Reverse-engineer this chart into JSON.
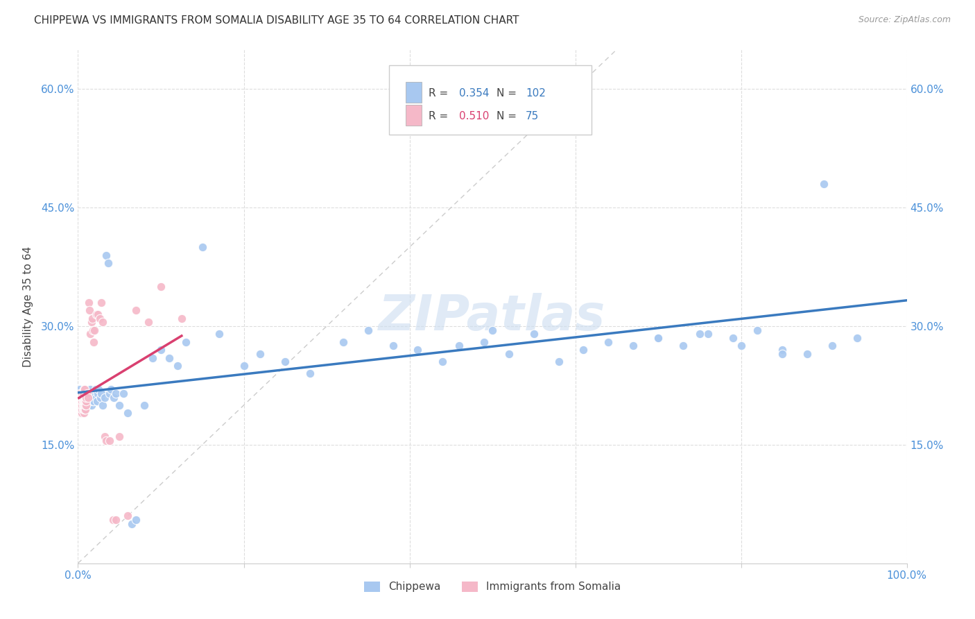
{
  "title": "CHIPPEWA VS IMMIGRANTS FROM SOMALIA DISABILITY AGE 35 TO 64 CORRELATION CHART",
  "source": "Source: ZipAtlas.com",
  "ylabel": "Disability Age 35 to 64",
  "xlim": [
    0,
    1.0
  ],
  "ylim": [
    0,
    0.65
  ],
  "ytick_vals": [
    0.15,
    0.3,
    0.45,
    0.6
  ],
  "xtick_vals": [
    0.0,
    0.2,
    0.4,
    0.6,
    0.8,
    1.0
  ],
  "chippewa_color": "#a8c8f0",
  "somalia_color": "#f5b8c8",
  "chippewa_line_color": "#3a7abf",
  "somalia_line_color": "#d94070",
  "diagonal_color": "#cccccc",
  "tick_label_color": "#4a90d9",
  "R_chippewa": 0.354,
  "N_chippewa": 102,
  "R_somalia": 0.51,
  "N_somalia": 75,
  "watermark_text": "ZIPatlas",
  "chippewa_x": [
    0.001,
    0.001,
    0.002,
    0.002,
    0.002,
    0.003,
    0.003,
    0.003,
    0.003,
    0.004,
    0.004,
    0.004,
    0.005,
    0.005,
    0.005,
    0.005,
    0.006,
    0.006,
    0.006,
    0.007,
    0.007,
    0.007,
    0.008,
    0.008,
    0.008,
    0.009,
    0.009,
    0.01,
    0.01,
    0.011,
    0.011,
    0.012,
    0.013,
    0.014,
    0.015,
    0.015,
    0.016,
    0.017,
    0.018,
    0.019,
    0.02,
    0.021,
    0.022,
    0.023,
    0.024,
    0.025,
    0.027,
    0.028,
    0.03,
    0.032,
    0.034,
    0.036,
    0.038,
    0.04,
    0.043,
    0.046,
    0.05,
    0.055,
    0.06,
    0.065,
    0.07,
    0.08,
    0.09,
    0.1,
    0.11,
    0.12,
    0.13,
    0.15,
    0.17,
    0.2,
    0.22,
    0.25,
    0.28,
    0.32,
    0.35,
    0.38,
    0.41,
    0.44,
    0.46,
    0.49,
    0.52,
    0.55,
    0.58,
    0.61,
    0.64,
    0.67,
    0.7,
    0.73,
    0.76,
    0.79,
    0.82,
    0.85,
    0.88,
    0.91,
    0.94,
    0.46,
    0.5,
    0.7,
    0.75,
    0.8,
    0.85,
    0.9
  ],
  "chippewa_y": [
    0.2,
    0.21,
    0.215,
    0.205,
    0.22,
    0.2,
    0.205,
    0.21,
    0.215,
    0.2,
    0.205,
    0.21,
    0.2,
    0.205,
    0.21,
    0.215,
    0.2,
    0.205,
    0.21,
    0.2,
    0.21,
    0.215,
    0.21,
    0.2,
    0.215,
    0.2,
    0.21,
    0.2,
    0.21,
    0.215,
    0.2,
    0.21,
    0.2,
    0.215,
    0.215,
    0.22,
    0.2,
    0.205,
    0.21,
    0.205,
    0.215,
    0.22,
    0.21,
    0.205,
    0.215,
    0.22,
    0.21,
    0.215,
    0.2,
    0.21,
    0.39,
    0.38,
    0.215,
    0.22,
    0.21,
    0.215,
    0.2,
    0.215,
    0.19,
    0.05,
    0.055,
    0.2,
    0.26,
    0.27,
    0.26,
    0.25,
    0.28,
    0.4,
    0.29,
    0.25,
    0.265,
    0.255,
    0.24,
    0.28,
    0.295,
    0.275,
    0.27,
    0.255,
    0.6,
    0.28,
    0.265,
    0.29,
    0.255,
    0.27,
    0.28,
    0.275,
    0.285,
    0.275,
    0.29,
    0.285,
    0.295,
    0.27,
    0.265,
    0.275,
    0.285,
    0.275,
    0.295,
    0.285,
    0.29,
    0.275,
    0.265,
    0.48
  ],
  "somalia_x": [
    0.001,
    0.001,
    0.001,
    0.001,
    0.002,
    0.002,
    0.002,
    0.002,
    0.002,
    0.002,
    0.002,
    0.003,
    0.003,
    0.003,
    0.003,
    0.003,
    0.003,
    0.003,
    0.004,
    0.004,
    0.004,
    0.004,
    0.004,
    0.005,
    0.005,
    0.005,
    0.005,
    0.005,
    0.005,
    0.006,
    0.006,
    0.006,
    0.006,
    0.006,
    0.007,
    0.007,
    0.007,
    0.007,
    0.007,
    0.008,
    0.008,
    0.008,
    0.008,
    0.009,
    0.009,
    0.009,
    0.01,
    0.01,
    0.01,
    0.011,
    0.012,
    0.013,
    0.014,
    0.015,
    0.016,
    0.017,
    0.018,
    0.019,
    0.02,
    0.022,
    0.024,
    0.026,
    0.028,
    0.03,
    0.032,
    0.034,
    0.038,
    0.042,
    0.046,
    0.05,
    0.06,
    0.07,
    0.085,
    0.1,
    0.125
  ],
  "somalia_y": [
    0.2,
    0.195,
    0.205,
    0.21,
    0.19,
    0.195,
    0.2,
    0.205,
    0.21,
    0.215,
    0.195,
    0.19,
    0.195,
    0.2,
    0.205,
    0.21,
    0.195,
    0.2,
    0.19,
    0.195,
    0.2,
    0.205,
    0.21,
    0.19,
    0.195,
    0.2,
    0.205,
    0.21,
    0.215,
    0.195,
    0.2,
    0.205,
    0.21,
    0.215,
    0.19,
    0.195,
    0.2,
    0.205,
    0.22,
    0.195,
    0.2,
    0.205,
    0.22,
    0.195,
    0.2,
    0.205,
    0.2,
    0.205,
    0.21,
    0.215,
    0.21,
    0.33,
    0.32,
    0.29,
    0.305,
    0.31,
    0.295,
    0.28,
    0.295,
    0.315,
    0.315,
    0.31,
    0.33,
    0.305,
    0.16,
    0.155,
    0.155,
    0.055,
    0.055,
    0.16,
    0.06,
    0.32,
    0.305,
    0.35,
    0.31
  ]
}
